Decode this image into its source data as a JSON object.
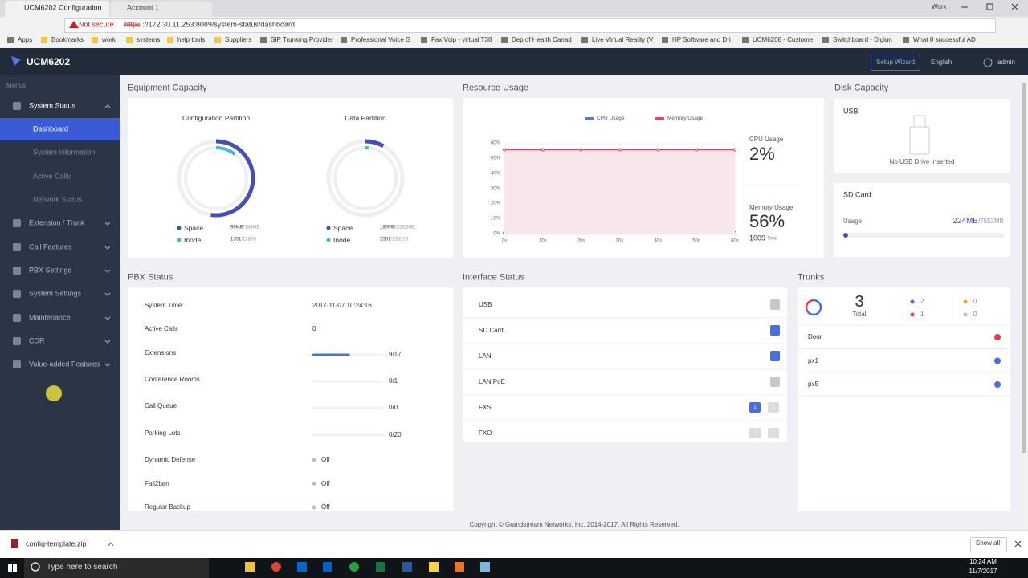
{
  "browser": {
    "tabs": [
      "UCM6202 Configuration",
      "Account 1"
    ],
    "profile": "Work",
    "security": "Not secure",
    "url_scheme": "https",
    "url_rest": "://172.30.11.253:8089/system-status/dashboard",
    "bookmarks": [
      "Apps",
      "Bookmarks",
      "work",
      "systems",
      "help tools",
      "Suppliers",
      "SIP Trunking Provider",
      "Professional Voice G",
      "Fax Voip - virtual T38",
      "Dep of Health Canad",
      "Live Virtual Reality (V",
      "HP Software and Dri",
      "UCM6208 - Custome",
      "Switchboard - Digiun",
      "What 8 successful AD"
    ]
  },
  "header": {
    "brand": "UCM6202",
    "setup_wizard": "Setup Wizard",
    "language": "English",
    "user": "admin"
  },
  "sidebar": {
    "title": "Menus",
    "items": [
      {
        "label": "System Status",
        "children": [
          "Dashboard",
          "System Information",
          "Active Calls",
          "Network Status"
        ]
      },
      {
        "label": "Extension / Trunk"
      },
      {
        "label": "Call Features"
      },
      {
        "label": "PBX Settings"
      },
      {
        "label": "System Settings"
      },
      {
        "label": "Maintenance"
      },
      {
        "label": "CDR"
      },
      {
        "label": "Value-added Features"
      }
    ]
  },
  "equipment": {
    "title": "Equipment Capacity",
    "partitions": [
      {
        "name": "Configuration Partition",
        "space": {
          "label": "Space",
          "color": "#4650b4",
          "used": {
            "value": 96,
            "label": "96MB"
          },
          "total": {
            "value": 184,
            "label": "/184MB"
          }
        },
        "inode": {
          "label": "Inode",
          "color": "#46b6d9",
          "used": {
            "value": 1351,
            "label": "1351"
          },
          "total": {
            "value": 12800,
            "label": "/12800"
          }
        }
      },
      {
        "name": "Data Partition",
        "space": {
          "label": "Space",
          "color": "#4650b4",
          "used": {
            "value": 180,
            "label": "180MB"
          },
          "total": {
            "value": 2232,
            "label": "/2232MB"
          }
        },
        "inode": {
          "label": "Inode",
          "color": "#46b6d9",
          "used": {
            "value": 2561,
            "label": "2561"
          },
          "total": {
            "value": 153216,
            "label": "/153216"
          }
        }
      }
    ]
  },
  "resource": {
    "title": "Resource Usage",
    "cpu_label": "CPU Usage",
    "cpu_value": "2%",
    "memory_label": "Memory Usage",
    "memory_value": "56%",
    "memory_total": "1009",
    "memory_total_label": "Total"
  },
  "chart_data": {
    "type": "line",
    "categories": [
      "0s",
      "10s",
      "20s",
      "30s",
      "40s",
      "50s",
      "60s"
    ],
    "series": [
      {
        "name": "CPU Usage",
        "color": "#5a78dc",
        "values": [
          1,
          1,
          1,
          1,
          1,
          2,
          1
        ]
      },
      {
        "name": "Memory Usage",
        "color": "#e4406c",
        "values": [
          56,
          56,
          56,
          56,
          56,
          56,
          56
        ]
      }
    ],
    "ylim": [
      0,
      60
    ],
    "yticks": [
      {
        "value": 0,
        "label": "0%"
      },
      {
        "value": 10,
        "label": "10%"
      },
      {
        "value": 20,
        "label": "20%"
      },
      {
        "value": 30,
        "label": "30%"
      },
      {
        "value": 40,
        "label": "40%"
      },
      {
        "value": 50,
        "label": "50%"
      },
      {
        "value": 60,
        "label": "60%"
      }
    ],
    "area_color": "#f7e6ea",
    "legend": "top"
  },
  "disk": {
    "title": "Disk Capacity",
    "usb": {
      "title": "USB",
      "status": "No USB Drive Inserted"
    },
    "sd": {
      "title": "SD Card",
      "usage_label": "Usage",
      "color": "#4650b4",
      "used": {
        "value": 224,
        "label": "224MB"
      },
      "total": {
        "value": 7552,
        "label": "/7552MB"
      }
    }
  },
  "pbx": {
    "title": "PBX Status",
    "rows": [
      {
        "label": "System Time:",
        "value": "2017-11-07 10:24:16"
      },
      {
        "label": "Active Calls",
        "value": "0"
      },
      {
        "label": "Extensions",
        "value": "9/17",
        "used": 9,
        "total": 17
      },
      {
        "label": "Conference Rooms",
        "value": "0/1",
        "used": 0,
        "total": 1
      },
      {
        "label": "Call Queue",
        "value": "0/0",
        "used": 0,
        "total": 0
      },
      {
        "label": "Parking Lots",
        "value": "0/20",
        "used": 0,
        "total": 20
      }
    ],
    "services": [
      {
        "label": "Dynamic Defense",
        "value": "Off"
      },
      {
        "label": "Fail2ban",
        "value": "Off"
      },
      {
        "label": "Regular Backup",
        "value": "Off"
      }
    ]
  },
  "interfaces": {
    "title": "Interface Status",
    "items": [
      {
        "name": "USB",
        "icon_color": "#c8c8c8"
      },
      {
        "name": "SD Card",
        "icon_color": "#4a6fdc"
      },
      {
        "name": "LAN",
        "icon_color": "#4a6fdc"
      },
      {
        "name": "LAN PoE",
        "icon_color": "#c8c8c8"
      },
      {
        "name": "FXS",
        "ports": [
          "1",
          "2"
        ],
        "port_colors": [
          "#4a6fdc",
          "#dcdcdc"
        ]
      },
      {
        "name": "FXO",
        "ports": [
          "1",
          "2"
        ],
        "port_colors": [
          "#dcdcdc",
          "#dcdcdc"
        ]
      }
    ]
  },
  "trunks": {
    "title": "Trunks",
    "total": "3",
    "total_label": "Total",
    "stats": [
      {
        "value": 2,
        "color": "#4a6fdc"
      },
      {
        "value": 0,
        "color": "#f0a030"
      },
      {
        "value": 1,
        "color": "#e04050"
      },
      {
        "value": 0,
        "color": "#bbbbbb"
      }
    ],
    "list": [
      {
        "name": "Door",
        "color": "#e03c4a"
      },
      {
        "name": "px1",
        "color": "#4a6fdc"
      },
      {
        "name": "px5",
        "color": "#4a6fdc"
      }
    ]
  },
  "footer": {
    "copyright": "Copyright © Grandstream Networks, Inc. 2014-2017. All Rights Reserved."
  },
  "downloads": {
    "file": "config-template.zip",
    "show_all": "Show all"
  },
  "taskbar": {
    "search": "Type here to search",
    "time": "10:24 AM",
    "date": "11/7/2017"
  }
}
